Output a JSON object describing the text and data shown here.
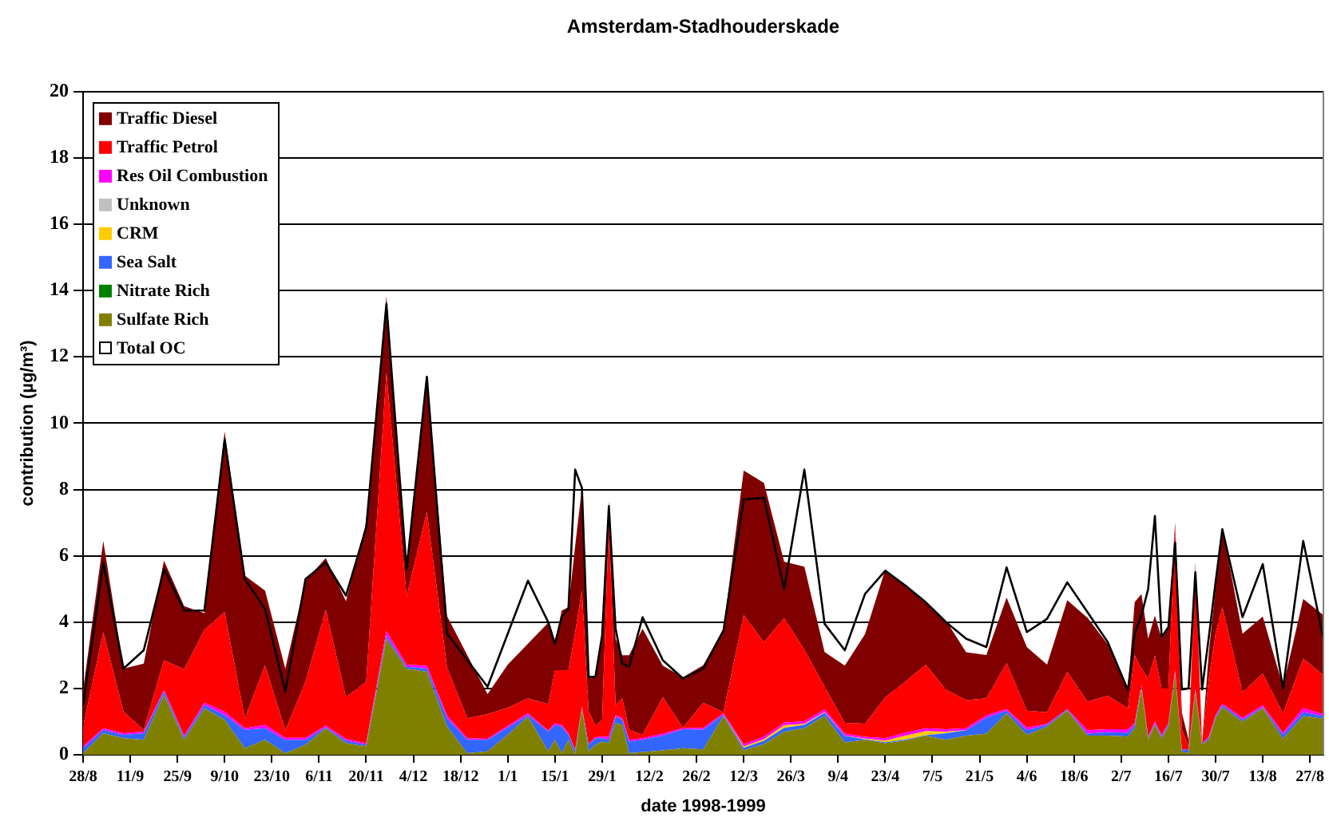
{
  "chart_data": {
    "type": "area",
    "stacked": true,
    "title": "Amsterdam-Stadhouderskade",
    "xlabel": "date 1998-1999",
    "ylabel": "contribution (µg/m³)",
    "x": [
      "1998-08-28",
      "1998-09-03",
      "1998-09-09",
      "1998-09-15",
      "1998-09-21",
      "1998-09-27",
      "1998-10-03",
      "1998-10-09",
      "1998-10-15",
      "1998-10-21",
      "1998-10-27",
      "1998-11-02",
      "1998-11-08",
      "1998-11-14",
      "1998-11-20",
      "1998-11-26",
      "1998-12-02",
      "1998-12-08",
      "1998-12-14",
      "1998-12-20",
      "1998-12-26",
      "1999-01-01",
      "1999-01-07",
      "1999-01-13",
      "1999-01-15",
      "1999-01-17",
      "1999-01-19",
      "1999-01-21",
      "1999-01-23",
      "1999-01-25",
      "1999-01-27",
      "1999-01-29",
      "1999-01-31",
      "1999-02-02",
      "1999-02-04",
      "1999-02-06",
      "1999-02-10",
      "1999-02-16",
      "1999-02-22",
      "1999-02-28",
      "1999-03-06",
      "1999-03-12",
      "1999-03-18",
      "1999-03-24",
      "1999-03-30",
      "1999-04-05",
      "1999-04-11",
      "1999-04-17",
      "1999-04-23",
      "1999-04-29",
      "1999-05-05",
      "1999-05-11",
      "1999-05-17",
      "1999-05-23",
      "1999-05-29",
      "1999-06-04",
      "1999-06-10",
      "1999-06-16",
      "1999-06-22",
      "1999-06-28",
      "1999-07-04",
      "1999-07-06",
      "1999-07-08",
      "1999-07-10",
      "1999-07-12",
      "1999-07-14",
      "1999-07-16",
      "1999-07-18",
      "1999-07-20",
      "1999-07-22",
      "1999-07-24",
      "1999-07-26",
      "1999-07-28",
      "1999-07-30",
      "1999-08-01",
      "1999-08-07",
      "1999-08-13",
      "1999-08-19",
      "1999-08-25",
      "1999-08-31"
    ],
    "xlim": [
      "1998-08-28",
      "1999-08-31"
    ],
    "xticks": [
      {
        "value": "1998-08-28",
        "label": "28/8"
      },
      {
        "value": "1998-09-11",
        "label": "11/9"
      },
      {
        "value": "1998-09-25",
        "label": "25/9"
      },
      {
        "value": "1998-10-09",
        "label": "9/10"
      },
      {
        "value": "1998-10-23",
        "label": "23/10"
      },
      {
        "value": "1998-11-06",
        "label": "6/11"
      },
      {
        "value": "1998-11-20",
        "label": "20/11"
      },
      {
        "value": "1998-12-04",
        "label": "4/12"
      },
      {
        "value": "1998-12-18",
        "label": "18/12"
      },
      {
        "value": "1999-01-01",
        "label": "1/1"
      },
      {
        "value": "1999-01-15",
        "label": "15/1"
      },
      {
        "value": "1999-01-29",
        "label": "29/1"
      },
      {
        "value": "1999-02-12",
        "label": "12/2"
      },
      {
        "value": "1999-02-26",
        "label": "26/2"
      },
      {
        "value": "1999-03-12",
        "label": "12/3"
      },
      {
        "value": "1999-03-26",
        "label": "26/3"
      },
      {
        "value": "1999-04-09",
        "label": "9/4"
      },
      {
        "value": "1999-04-23",
        "label": "23/4"
      },
      {
        "value": "1999-05-07",
        "label": "7/5"
      },
      {
        "value": "1999-05-21",
        "label": "21/5"
      },
      {
        "value": "1999-06-04",
        "label": "4/6"
      },
      {
        "value": "1999-06-18",
        "label": "18/6"
      },
      {
        "value": "1999-07-02",
        "label": "2/7"
      },
      {
        "value": "1999-07-16",
        "label": "16/7"
      },
      {
        "value": "1999-07-30",
        "label": "30/7"
      },
      {
        "value": "1999-08-13",
        "label": "13/8"
      },
      {
        "value": "1999-08-27",
        "label": "27/8"
      }
    ],
    "ylim": [
      0,
      20
    ],
    "yticks": [
      0,
      2,
      4,
      6,
      8,
      10,
      12,
      14,
      16,
      18,
      20
    ],
    "grid": "y",
    "legend": "top left",
    "series": [
      {
        "name": "Sulfate Rich",
        "color": "#808000",
        "values": [
          0.05,
          0.65,
          0.5,
          0.45,
          1.8,
          0.45,
          1.4,
          1.05,
          0.2,
          0.45,
          0.05,
          0.3,
          0.8,
          0.35,
          0.25,
          3.5,
          2.6,
          2.5,
          0.85,
          0.05,
          0.1,
          0.6,
          1.15,
          0.1,
          0.45,
          0.05,
          0.45,
          0.02,
          1.4,
          0.1,
          0.3,
          0.4,
          0.35,
          0.95,
          0.9,
          0.05,
          0.08,
          0.13,
          0.2,
          0.16,
          1.17,
          0.13,
          0.32,
          0.69,
          0.8,
          1.17,
          0.37,
          0.45,
          0.35,
          0.43,
          0.57,
          0.45,
          0.58,
          0.64,
          1.25,
          0.6,
          0.85,
          1.33,
          0.58,
          0.58,
          0.55,
          0.8,
          2.0,
          0.45,
          0.9,
          0.5,
          0.85,
          2.45,
          0.1,
          0.05,
          1.9,
          0.3,
          0.45,
          1.1,
          1.44,
          1.0,
          1.41,
          0.48,
          1.17,
          1.09
        ]
      },
      {
        "name": "Nitrate Rich",
        "color": "#008000",
        "values": [
          null,
          null,
          null,
          null,
          null,
          null,
          null,
          null,
          null,
          null,
          null,
          null,
          null,
          null,
          null,
          null,
          null,
          null,
          null,
          null,
          null,
          null,
          null,
          null,
          null,
          null,
          null,
          null,
          null,
          null,
          null,
          null,
          null,
          null,
          null,
          null,
          null,
          null,
          null,
          null,
          null,
          null,
          null,
          null,
          null,
          null,
          null,
          null,
          null,
          null,
          null,
          null,
          null,
          null,
          null,
          null,
          null,
          null,
          null,
          null,
          null,
          null,
          null,
          null,
          null,
          null,
          null,
          null,
          null,
          null,
          null,
          null,
          null,
          null,
          null,
          null,
          null,
          null,
          null,
          null
        ]
      },
      {
        "name": "Sea Salt",
        "color": "#3366ff",
        "values": [
          0.15,
          0.1,
          0.1,
          0.2,
          0.1,
          0.08,
          0.1,
          0.15,
          0.55,
          0.35,
          0.4,
          0.15,
          0.03,
          0.08,
          0.05,
          0.1,
          0.05,
          0.1,
          0.25,
          0.4,
          0.35,
          0.22,
          0.05,
          0.6,
          0.45,
          0.8,
          0.15,
          0.1,
          0.02,
          0.2,
          0.2,
          0.1,
          0.1,
          0.2,
          0.15,
          0.35,
          0.37,
          0.45,
          0.57,
          0.6,
          0.04,
          0.08,
          0.1,
          0.12,
          0.1,
          0.1,
          0.2,
          0.02,
          0.03,
          0.03,
          0.02,
          0.2,
          0.16,
          0.48,
          0.08,
          0.14,
          0.05,
          0.03,
          0.06,
          0.1,
          0.12,
          0.1,
          0.05,
          0.05,
          0.05,
          0.05,
          0.05,
          0.05,
          0.05,
          0.1,
          0.05,
          0.03,
          0.05,
          0.05,
          0.05,
          0.06,
          0.03,
          0.13,
          0.12,
          0.08
        ]
      },
      {
        "name": "CRM",
        "color": "#ffcc00",
        "values": [
          0,
          0,
          0,
          0,
          0,
          0,
          0,
          0,
          0,
          0,
          0,
          0,
          0,
          0,
          0,
          0,
          0,
          0,
          0,
          0,
          0,
          0,
          0,
          0,
          0,
          0,
          0,
          0,
          0,
          0,
          0,
          0,
          0,
          0,
          0,
          0,
          0,
          0,
          0,
          0,
          0,
          0.04,
          0.05,
          0.08,
          0.03,
          0.02,
          0.01,
          0.02,
          0.05,
          0.12,
          0.12,
          0.05,
          0,
          0,
          0,
          0,
          0,
          0,
          0,
          0,
          0,
          0,
          0,
          0,
          0,
          0,
          0,
          0,
          0,
          0,
          0,
          0,
          0,
          0,
          0,
          0,
          0,
          0,
          0,
          0
        ]
      },
      {
        "name": "Unknown",
        "color": "#c0c0c0",
        "values": [
          null,
          null,
          null,
          null,
          null,
          null,
          null,
          null,
          null,
          null,
          null,
          null,
          null,
          null,
          null,
          null,
          null,
          null,
          null,
          null,
          null,
          null,
          null,
          null,
          null,
          null,
          null,
          null,
          null,
          null,
          null,
          null,
          null,
          null,
          null,
          null,
          null,
          null,
          null,
          null,
          null,
          null,
          null,
          null,
          null,
          null,
          null,
          null,
          null,
          null,
          null,
          null,
          null,
          null,
          null,
          null,
          null,
          null,
          null,
          null,
          null,
          null,
          null,
          null,
          null,
          null,
          null,
          null,
          null,
          null,
          null,
          null,
          null,
          null,
          null,
          null,
          null,
          null,
          null,
          null
        ]
      },
      {
        "name": "Res Oil Combustion",
        "color": "#ff00ff",
        "values": [
          0.05,
          0.05,
          0.05,
          0.05,
          0.05,
          0.05,
          0.07,
          0.1,
          0.05,
          0.1,
          0.06,
          0.06,
          0.05,
          0.05,
          0.05,
          0.13,
          0.07,
          0.08,
          0.08,
          0.05,
          0.03,
          0.05,
          0.05,
          0.03,
          0.05,
          0.05,
          0.05,
          0.03,
          0.03,
          0.02,
          0.03,
          0.05,
          0.1,
          0.05,
          0.05,
          0.05,
          0.05,
          0.06,
          0.03,
          0.05,
          0.04,
          0.07,
          0.08,
          0.08,
          0.08,
          0.08,
          0.06,
          0.05,
          0.07,
          0.09,
          0.09,
          0.07,
          0.06,
          0.07,
          0.05,
          0.08,
          0.03,
          0.02,
          0.1,
          0.09,
          0.1,
          0.05,
          0.05,
          0.05,
          0.05,
          0.05,
          0.05,
          0.05,
          0.02,
          0.02,
          0.05,
          0.02,
          0.05,
          0.05,
          0.05,
          0.05,
          0.05,
          0.06,
          0.12,
          0.05
        ]
      },
      {
        "name": "Traffic Petrol",
        "color": "#ff0000",
        "values": [
          0.6,
          2.9,
          0.65,
          0.05,
          0.9,
          2.0,
          2.2,
          3.0,
          0.3,
          1.8,
          0.23,
          1.7,
          3.5,
          1.25,
          1.85,
          7.8,
          2.05,
          4.65,
          1.45,
          0.6,
          0.75,
          0.55,
          0.45,
          0.8,
          1.6,
          1.65,
          1.9,
          3.55,
          3.5,
          1.0,
          0.35,
          0.5,
          6.5,
          0.3,
          0.6,
          0.3,
          0.1,
          1.1,
          0.02,
          0.76,
          0.03,
          3.9,
          2.85,
          3.15,
          2.16,
          0.68,
          0.32,
          0.4,
          1.23,
          1.54,
          1.92,
          1.2,
          0.85,
          0.51,
          1.39,
          0.51,
          0.35,
          1.12,
          0.86,
          1.01,
          0.63,
          2.05,
          0.5,
          1.75,
          2.0,
          1.4,
          1.05,
          4.35,
          0.6,
          0.08,
          3.7,
          0,
          1.75,
          2.45,
          2.92,
          0.78,
          0.96,
          0.58,
          1.49,
          1.18
        ]
      },
      {
        "name": "Traffic Diesel",
        "color": "#800000",
        "values": [
          1.1,
          2.75,
          1.3,
          2.0,
          3.0,
          1.9,
          0.5,
          5.45,
          4.3,
          2.25,
          1.86,
          3.05,
          1.55,
          2.9,
          4.8,
          2.3,
          0.9,
          4.1,
          1.55,
          1.9,
          0.6,
          1.3,
          1.65,
          2.45,
          0.8,
          1.8,
          1.9,
          2.6,
          3.1,
          1.05,
          1.45,
          2.6,
          0.6,
          2.0,
          1.3,
          2.25,
          3.2,
          0.95,
          1.52,
          1.13,
          2.5,
          4.35,
          4.8,
          1.7,
          2.5,
          1.05,
          1.73,
          2.7,
          3.85,
          2.89,
          1.9,
          2.08,
          1.44,
          1.31,
          1.97,
          1.92,
          1.44,
          2.16,
          2.53,
          1.55,
          0.57,
          1.6,
          2.25,
          1.2,
          1.2,
          1.5,
          1.8,
          0.1,
          0.5,
          0.2,
          0.1,
          0.02,
          0.8,
          1.35,
          2.4,
          1.76,
          1.72,
          0.8,
          1.8,
          1.81
        ]
      },
      {
        "name": "Total OC",
        "type": "line",
        "color": "#000000",
        "values": [
          1.5,
          5.8,
          2.6,
          3.15,
          5.6,
          4.35,
          4.35,
          9.5,
          5.3,
          4.4,
          1.9,
          5.3,
          5.8,
          4.8,
          6.85,
          13.6,
          5.6,
          11.4,
          3.65,
          2.85,
          2.05,
          3.65,
          5.25,
          4.0,
          3.35,
          4.15,
          4.4,
          8.6,
          8.05,
          2.35,
          2.35,
          3.6,
          7.5,
          3.8,
          2.75,
          2.65,
          4.15,
          2.85,
          2.3,
          2.6,
          3.75,
          7.7,
          7.75,
          5.0,
          8.6,
          3.95,
          3.15,
          4.85,
          5.55,
          5.1,
          4.6,
          4.0,
          3.5,
          3.25,
          5.65,
          3.7,
          4.1,
          5.2,
          4.3,
          3.4,
          1.95,
          3.65,
          4.2,
          5.0,
          7.2,
          3.55,
          3.85,
          6.4,
          1.97,
          2.0,
          5.5,
          1.97,
          3.55,
          5.2,
          6.8,
          4.15,
          5.75,
          2.0,
          6.45,
          3.5
        ]
      }
    ]
  }
}
